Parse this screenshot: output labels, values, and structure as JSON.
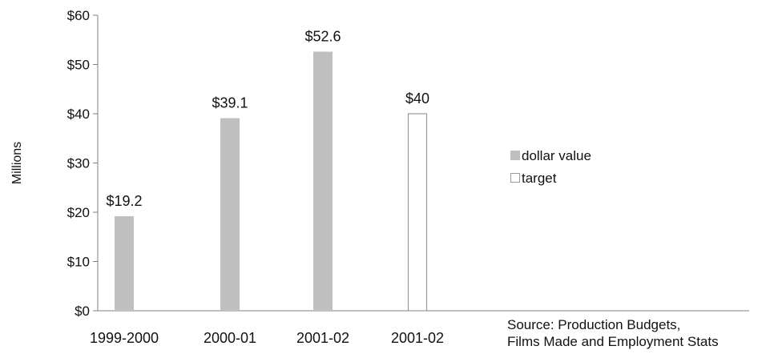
{
  "chart_data": {
    "type": "bar",
    "title": "",
    "xlabel": "",
    "ylabel": "Millions",
    "categories": [
      "1999-2000",
      "2000-01",
      "2001-02",
      "2001-02"
    ],
    "series": [
      {
        "name": "dollar value",
        "values": [
          19.2,
          39.1,
          52.6,
          null
        ],
        "color": "#bfbfbf",
        "style": "filled"
      },
      {
        "name": "target",
        "values": [
          null,
          null,
          null,
          40
        ],
        "color": "#ffffff",
        "stroke": "#9a9a9a",
        "style": "outline"
      }
    ],
    "data_labels": [
      "$19.2",
      "$39.1",
      "$52.6",
      "$40"
    ],
    "yticks": [
      0,
      10,
      20,
      30,
      40,
      50,
      60
    ],
    "ytick_labels": [
      "$0",
      "$10",
      "$20",
      "$30",
      "$40",
      "$50",
      "$60"
    ],
    "ylim": [
      0,
      60
    ],
    "grid": false,
    "legend_position": "right"
  },
  "source_note": {
    "line1": "Source: Production Budgets,",
    "line2": "Films Made and Employment Stats"
  }
}
